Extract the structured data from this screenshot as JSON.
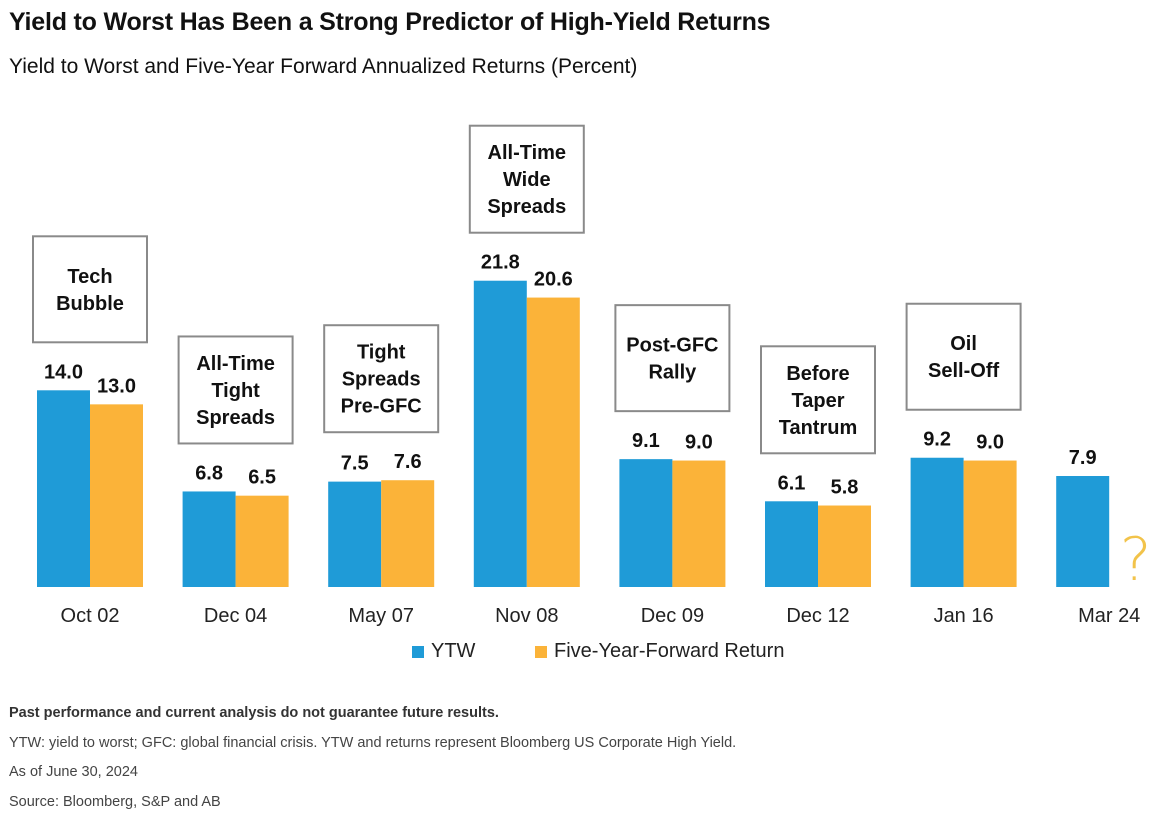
{
  "title": "Yield to Worst Has Been a Strong Predictor of High-Yield Returns",
  "subtitle": "Yield to Worst and Five-Year Forward Annualized Returns (Percent)",
  "legend": {
    "ytw": "YTW",
    "fwd": "Five-Year-Forward Return"
  },
  "colors": {
    "ytw": "#1f9bd7",
    "fwd": "#fbb339",
    "question_mark": "#f2c34a",
    "annotation_border": "#8a8a8a"
  },
  "notes": {
    "disclaimer": "Past performance and current analysis do not guarantee future results.",
    "definitions": "YTW: yield to worst; GFC: global financial crisis. YTW and returns represent Bloomberg US Corporate High Yield.",
    "as_of": "As of June 30, 2024",
    "source": "Source: Bloomberg, S&P and AB"
  },
  "chart_data": {
    "type": "bar",
    "categories": [
      "Oct 02",
      "Dec 04",
      "May 07",
      "Nov 08",
      "Dec 09",
      "Dec 12",
      "Jan 16",
      "Mar 24"
    ],
    "series": [
      {
        "name": "YTW",
        "values": [
          14.0,
          6.8,
          7.5,
          21.8,
          9.1,
          6.1,
          9.2,
          7.9
        ]
      },
      {
        "name": "Five-Year-Forward Return",
        "values": [
          13.0,
          6.5,
          7.6,
          20.6,
          9.0,
          5.8,
          9.0,
          null
        ]
      }
    ],
    "value_labels": {
      "YTW": [
        "14.0",
        "6.8",
        "7.5",
        "21.8",
        "9.1",
        "6.1",
        "9.2",
        "7.9"
      ],
      "Five-Year-Forward Return": [
        "13.0",
        "6.5",
        "7.6",
        "20.6",
        "9.0",
        "5.8",
        "9.0",
        ""
      ]
    },
    "annotations": [
      {
        "category": "Oct 02",
        "text": [
          "Tech",
          "Bubble"
        ]
      },
      {
        "category": "Dec 04",
        "text": [
          "All-Time",
          "Tight",
          "Spreads"
        ]
      },
      {
        "category": "May 07",
        "text": [
          "Tight",
          "Spreads",
          "Pre-GFC"
        ]
      },
      {
        "category": "Nov 08",
        "text": [
          "All-Time",
          "Wide",
          "Spreads"
        ]
      },
      {
        "category": "Dec 09",
        "text": [
          "Post-GFC",
          "Rally"
        ]
      },
      {
        "category": "Dec 12",
        "text": [
          "Before",
          "Taper",
          "Tantrum"
        ]
      },
      {
        "category": "Jan 16",
        "text": [
          "Oil",
          "Sell-Off"
        ]
      }
    ],
    "unknown_marker": {
      "category": "Mar 24",
      "series": "Five-Year-Forward Return",
      "text": "?"
    },
    "ylim": [
      0,
      22
    ],
    "grid": false,
    "legend_position": "bottom-center"
  }
}
